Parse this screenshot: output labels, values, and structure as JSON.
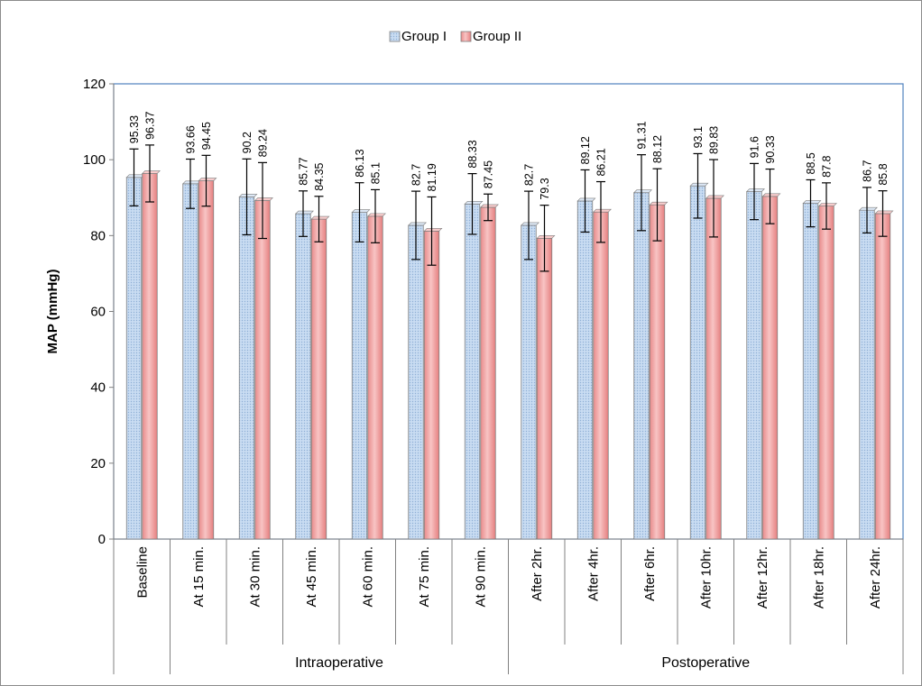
{
  "chart_data": {
    "type": "bar",
    "title": "",
    "xlabel": "",
    "ylabel": "MAP (mmHg)",
    "ylim": [
      0,
      120
    ],
    "yticks": [
      0,
      20,
      40,
      60,
      80,
      100,
      120
    ],
    "legend_position": "top",
    "grid": false,
    "categories": [
      "Baseline",
      "At 15 min.",
      "At 30 min.",
      "At 45 min.",
      "At 60 min.",
      "At 75 min.",
      "At 90 min.",
      "After 2hr.",
      "After 4hr.",
      "After 6hr.",
      "After 10hr.",
      "After 12hr.",
      "After 18hr.",
      "After 24hr."
    ],
    "category_groups": [
      {
        "label": "",
        "start": 0,
        "end": 0
      },
      {
        "label": "Intraoperative",
        "start": 1,
        "end": 6
      },
      {
        "label": "Postoperative",
        "start": 7,
        "end": 13
      }
    ],
    "series": [
      {
        "name": "Group I",
        "color": "#c6d9f1",
        "values": [
          95.33,
          93.66,
          90.2,
          85.77,
          86.13,
          82.7,
          88.33,
          82.7,
          89.12,
          91.31,
          93.1,
          91.6,
          88.5,
          86.7
        ],
        "labels": [
          "95.33",
          "93.66",
          "90.2",
          "85.77",
          "86.13",
          "82.7",
          "88.33",
          "82.7",
          "89.12",
          "91.31",
          "93.1",
          "91.6",
          "88.5",
          "86.7"
        ],
        "error": [
          7.5,
          6.5,
          10.0,
          6.0,
          7.8,
          9.0,
          8.0,
          9.0,
          8.2,
          10.0,
          8.5,
          7.4,
          6.2,
          6.0
        ]
      },
      {
        "name": "Group II",
        "color": "#f4a7a7",
        "values": [
          96.37,
          94.45,
          89.24,
          84.35,
          85.1,
          81.19,
          87.45,
          79.3,
          86.21,
          88.12,
          89.83,
          90.33,
          87.8,
          85.8
        ],
        "labels": [
          "96.37",
          "94.45",
          "89.24",
          "84.35",
          "85.1",
          "81.19",
          "87.45",
          "79.3",
          "86.21",
          "88.12",
          "89.83",
          "90.33",
          "87.8",
          "85.8"
        ],
        "error": [
          7.5,
          6.7,
          10.0,
          6.0,
          7.0,
          9.0,
          3.5,
          8.7,
          8.0,
          9.5,
          10.2,
          7.2,
          6.1,
          6.0
        ]
      }
    ]
  }
}
